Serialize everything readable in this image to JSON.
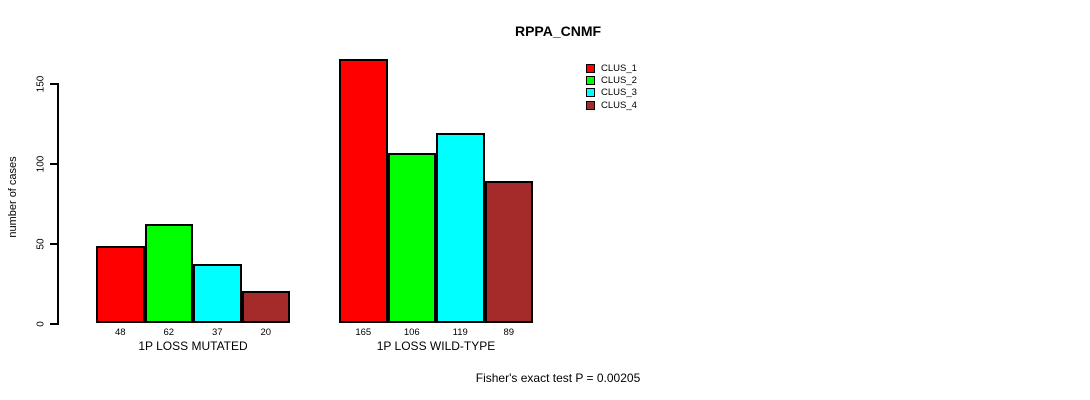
{
  "chart_data": {
    "type": "bar",
    "title": "RPPA_CNMF",
    "xlabel": "",
    "ylabel": "number of cases",
    "categories": [
      "1P LOSS MUTATED",
      "1P LOSS WILD-TYPE"
    ],
    "series": [
      {
        "name": "CLUS_1",
        "color": "#ff0000",
        "values": [
          48,
          165
        ]
      },
      {
        "name": "CLUS_2",
        "color": "#00ff00",
        "values": [
          62,
          106
        ]
      },
      {
        "name": "CLUS_3",
        "color": "#00ffff",
        "values": [
          37,
          119
        ]
      },
      {
        "name": "CLUS_4",
        "color": "#a52a2a",
        "values": [
          20,
          89
        ]
      }
    ],
    "yticks": [
      0,
      50,
      100,
      150
    ],
    "ylim": [
      0,
      165
    ],
    "grid": false,
    "legend_position": "top-right",
    "bar_value_labels_shown": true,
    "annotation": "Fisher's exact test P = 0.00205"
  },
  "colors": {
    "background": "#ffffff",
    "axis": "#000000",
    "text": "#000000"
  }
}
